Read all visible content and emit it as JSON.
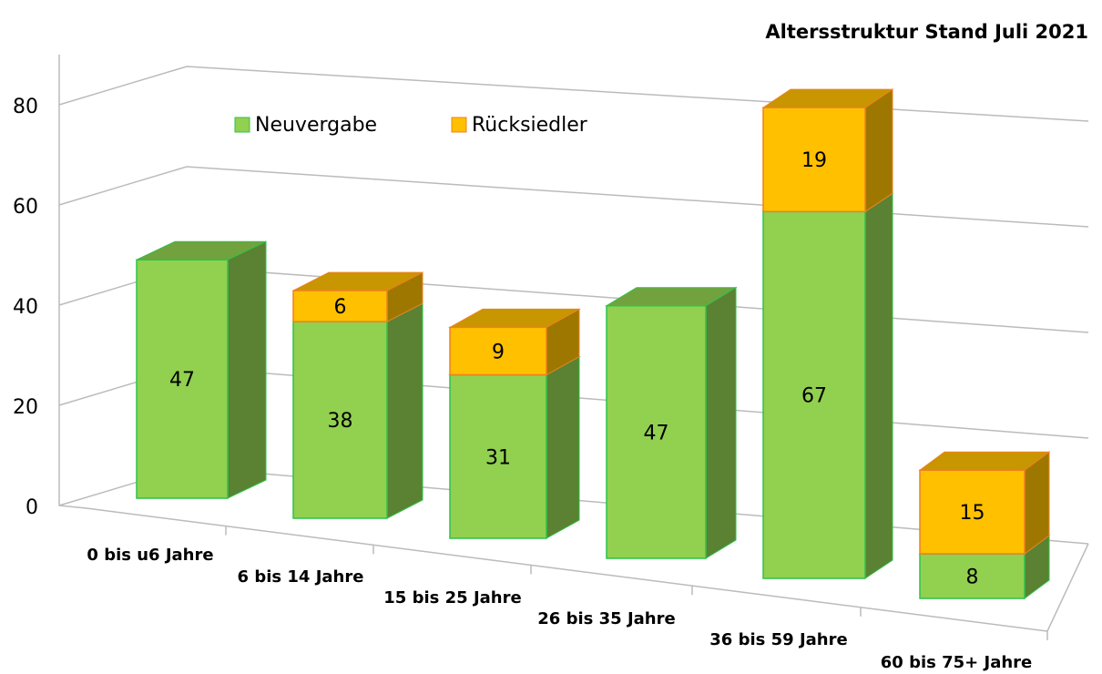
{
  "chart_data": {
    "type": "bar3d_stacked",
    "title": "Altersstruktur Stand Juli 2021",
    "categories": [
      "0 bis u6 Jahre",
      "6 bis 14 Jahre",
      "15 bis 25 Jahre",
      "26 bis 35 Jahre",
      "36 bis 59 Jahre",
      "60 bis 75+ Jahre"
    ],
    "series": [
      {
        "name": "Neuvergabe",
        "color": "#92d050",
        "values": [
          47,
          38,
          31,
          47,
          67,
          8
        ]
      },
      {
        "name": "Rücksiedler",
        "color": "#ffc000",
        "values": [
          null,
          6,
          9,
          null,
          19,
          15
        ]
      }
    ],
    "ylim": [
      0,
      90
    ],
    "yticks": [
      0,
      20,
      40,
      60,
      80
    ],
    "grid": true,
    "legend": "top"
  }
}
